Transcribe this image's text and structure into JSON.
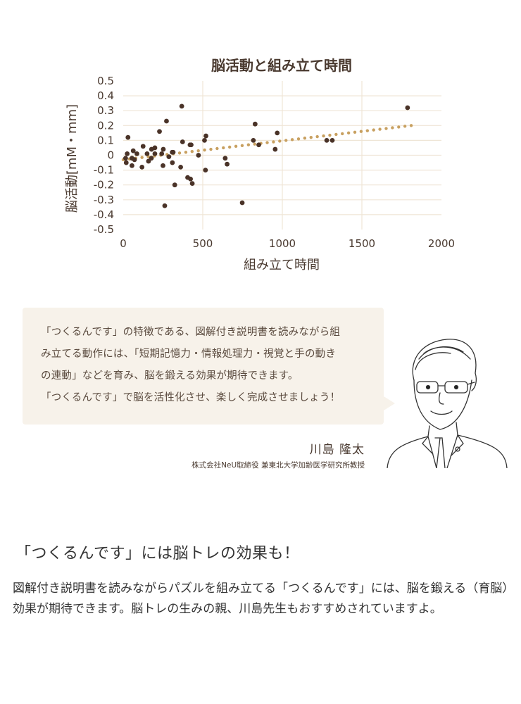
{
  "chart_data": {
    "type": "scatter",
    "title": "脳活動と組み立て時間",
    "xlabel": "組み立て時間",
    "ylabel": "脳活動[mM・mm]",
    "xlim": [
      0,
      2000
    ],
    "ylim": [
      -0.5,
      0.5
    ],
    "x_ticks": [
      "0",
      "500",
      "1000",
      "1500",
      "2000"
    ],
    "y_ticks": [
      "0.5",
      "0.4",
      "0.3",
      "0.2",
      "0.1",
      "0",
      "-0.1",
      "-0.2",
      "-0.3",
      "-0.4",
      "-0.5"
    ],
    "grid": true,
    "points": [
      [
        15,
        -0.02
      ],
      [
        19,
        -0.05
      ],
      [
        25,
        0.01
      ],
      [
        30,
        0.12
      ],
      [
        55,
        -0.02
      ],
      [
        55,
        -0.07
      ],
      [
        63,
        0.03
      ],
      [
        71,
        -0.03
      ],
      [
        86,
        0.01
      ],
      [
        118,
        -0.08
      ],
      [
        125,
        0.06
      ],
      [
        150,
        0.01
      ],
      [
        159,
        -0.04
      ],
      [
        177,
        -0.02
      ],
      [
        178,
        0.04
      ],
      [
        199,
        0.05
      ],
      [
        199,
        0.01
      ],
      [
        228,
        0.16
      ],
      [
        242,
        0.01
      ],
      [
        252,
        0.04
      ],
      [
        250,
        -0.07
      ],
      [
        261,
        -0.34
      ],
      [
        272,
        0.23
      ],
      [
        287,
        -0.01
      ],
      [
        308,
        0.02
      ],
      [
        314,
        0.02
      ],
      [
        309,
        -0.05
      ],
      [
        324,
        -0.2
      ],
      [
        361,
        -0.08
      ],
      [
        368,
        0.33
      ],
      [
        373,
        0.09
      ],
      [
        405,
        -0.15
      ],
      [
        423,
        -0.16
      ],
      [
        420,
        0.07
      ],
      [
        427,
        0.07
      ],
      [
        434,
        -0.19
      ],
      [
        473,
        0.0
      ],
      [
        511,
        0.1
      ],
      [
        520,
        0.13
      ],
      [
        517,
        -0.1
      ],
      [
        641,
        -0.02
      ],
      [
        653,
        -0.06
      ],
      [
        748,
        -0.32
      ],
      [
        818,
        0.1
      ],
      [
        829,
        0.21
      ],
      [
        852,
        0.07
      ],
      [
        955,
        0.04
      ],
      [
        968,
        0.15
      ],
      [
        1279,
        0.1
      ],
      [
        1314,
        0.1
      ],
      [
        1787,
        0.32
      ]
    ],
    "trendline": {
      "type": "linear",
      "x": [
        0,
        1810
      ],
      "y": [
        -0.03,
        0.2
      ]
    },
    "colors": {
      "points": "#4a3328",
      "trendline": "#c8a060",
      "grid": "#efe5d6"
    }
  },
  "quote": {
    "lines": [
      "「つくるんです」の特徴である、図解付き説明書を読みながら組",
      "み立てる動作には、「短期記憶力・情報処理力・視覚と手の動き",
      "の連動」などを育み、脳を鍛える効果が期待できます。",
      "「つくるんです」で脳を活性化させ、楽しく完成させましょう！"
    ],
    "name": "川島 隆太",
    "affiliation": "株式会社NeU取締役 兼東北大学加齢医学研究所教授"
  },
  "section": {
    "heading": "「つくるんです」には脳トレの効果も！",
    "body": "図解付き説明書を読みながらパズルを組み立てる「つくるんです」には、脳を鍛える（育脳）効果が期待できます。脳トレの生みの親、川島先生もおすすめされていますよ。"
  }
}
